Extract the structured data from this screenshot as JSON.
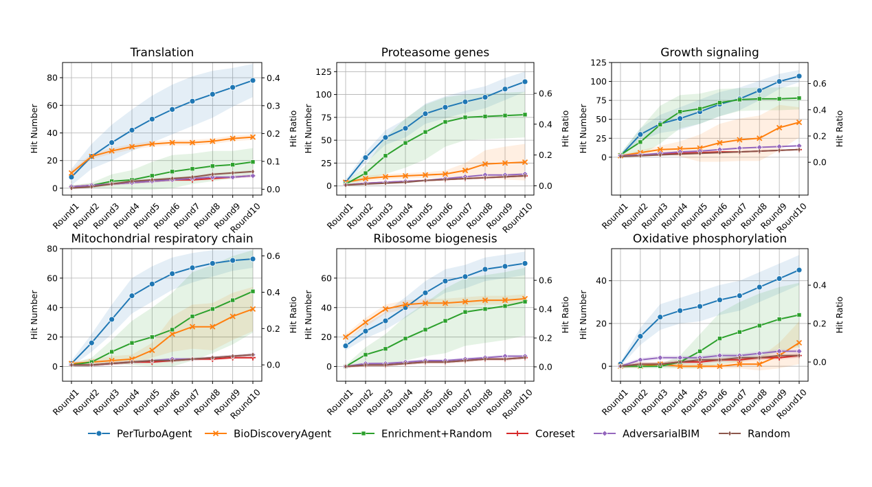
{
  "shared": {
    "categories": [
      "Round1",
      "Round2",
      "Round3",
      "Round4",
      "Round5",
      "Round6",
      "Round7",
      "Round8",
      "Round9",
      "Round10"
    ],
    "ylabel_left": "Hit Number",
    "ylabel_right": "Hit Ratio",
    "legend": [
      {
        "name": "PerTurboAgent",
        "color": "#1f77b4",
        "marker": "circle"
      },
      {
        "name": "BioDiscoveryAgent",
        "color": "#ff7f0e",
        "marker": "x"
      },
      {
        "name": "Enrichment+Random",
        "color": "#2ca02c",
        "marker": "square"
      },
      {
        "name": "Coreset",
        "color": "#d62728",
        "marker": "plus"
      },
      {
        "name": "AdversarialBIM",
        "color": "#9467bd",
        "marker": "diamond"
      },
      {
        "name": "Random",
        "color": "#8c564b",
        "marker": "thin-diamond"
      }
    ],
    "legend_position": "bottom-center",
    "grid": true
  },
  "chart_data": [
    {
      "type": "line",
      "title": "Translation",
      "ylim": [
        -5,
        91
      ],
      "yticks": [
        0,
        20,
        40,
        60,
        80
      ],
      "y2lim": [
        -0.021,
        0.455
      ],
      "y2ticks": [
        "0.0",
        "0.1",
        "0.2",
        "0.3",
        "0.4"
      ],
      "series": [
        {
          "name": "PerTurboAgent",
          "values": [
            8,
            23,
            33,
            42,
            50,
            57,
            63,
            68,
            73,
            78
          ],
          "band": [
            6,
            9,
            13,
            15,
            17,
            18,
            18,
            17,
            14,
            12
          ]
        },
        {
          "name": "BioDiscoveryAgent",
          "values": [
            11,
            23,
            27,
            30,
            32,
            33,
            33,
            34,
            36,
            37
          ],
          "band": [
            2,
            2,
            2,
            2,
            2,
            2,
            2,
            2,
            2,
            2
          ]
        },
        {
          "name": "Enrichment+Random",
          "values": [
            1,
            2,
            5,
            6,
            9,
            12,
            14,
            16,
            17,
            19
          ],
          "band": [
            1,
            2,
            5,
            7,
            10,
            12,
            11,
            11,
            10,
            10
          ]
        },
        {
          "name": "Coreset",
          "values": [
            1,
            2,
            3,
            4,
            5,
            6,
            6,
            7,
            8,
            9
          ],
          "band": [
            1,
            1,
            1,
            1,
            1,
            1,
            1,
            1,
            1,
            1
          ]
        },
        {
          "name": "AdversarialBIM",
          "values": [
            1,
            2,
            3,
            4,
            5,
            6,
            7,
            8,
            8,
            9
          ],
          "band": [
            1,
            1,
            1,
            1,
            1,
            1,
            1,
            1,
            1,
            1
          ]
        },
        {
          "name": "Random",
          "values": [
            0,
            1,
            3,
            5,
            6,
            7,
            8,
            10,
            11,
            12
          ],
          "band": [
            1,
            1,
            1,
            1,
            1,
            1,
            1,
            1,
            1,
            1
          ]
        }
      ]
    },
    {
      "type": "line",
      "title": "Proteasome genes",
      "ylim": [
        -10,
        135
      ],
      "yticks": [
        0,
        25,
        50,
        75,
        100,
        125
      ],
      "y2lim": [
        -0.06,
        0.8
      ],
      "y2ticks": [
        "0.0",
        "0.2",
        "0.4",
        "0.6"
      ],
      "series": [
        {
          "name": "PerTurboAgent",
          "values": [
            4,
            31,
            53,
            63,
            79,
            86,
            92,
            97,
            106,
            114
          ],
          "band": [
            3,
            6,
            8,
            10,
            11,
            12,
            12,
            12,
            12,
            11
          ]
        },
        {
          "name": "BioDiscoveryAgent",
          "values": [
            4,
            8,
            10,
            11,
            12,
            13,
            17,
            24,
            25,
            26
          ],
          "band": [
            1,
            3,
            3,
            3,
            3,
            4,
            8,
            15,
            18,
            20
          ]
        },
        {
          "name": "Enrichment+Random",
          "values": [
            2,
            14,
            33,
            47,
            59,
            70,
            75,
            76,
            77,
            78
          ],
          "band": [
            2,
            8,
            20,
            27,
            30,
            27,
            25,
            25,
            25,
            25
          ]
        },
        {
          "name": "Coreset",
          "values": [
            1,
            3,
            4,
            5,
            6,
            7,
            8,
            9,
            10,
            11
          ],
          "band": [
            1,
            1,
            1,
            1,
            1,
            1,
            1,
            1,
            1,
            1
          ]
        },
        {
          "name": "AdversarialBIM",
          "values": [
            1,
            3,
            4,
            5,
            6,
            8,
            10,
            12,
            12,
            13
          ],
          "band": [
            1,
            1,
            1,
            1,
            1,
            1,
            1,
            1,
            1,
            1
          ]
        },
        {
          "name": "Random",
          "values": [
            1,
            2,
            3,
            4,
            6,
            7,
            8,
            9,
            10,
            11
          ],
          "band": [
            1,
            1,
            1,
            1,
            1,
            1,
            1,
            1,
            1,
            1
          ]
        }
      ]
    },
    {
      "type": "line",
      "title": "Growth signaling",
      "ylim": [
        -50,
        125
      ],
      "yticks": [
        0,
        25,
        50,
        75,
        100,
        125
      ],
      "y2lim": [
        -0.25,
        0.76
      ],
      "y2ticks": [
        "0.0",
        "0.2",
        "0.4",
        "0.6"
      ],
      "series": [
        {
          "name": "PerTurboAgent",
          "values": [
            2,
            30,
            44,
            51,
            60,
            70,
            77,
            88,
            100,
            107
          ],
          "band": [
            2,
            8,
            12,
            15,
            16,
            16,
            15,
            13,
            10,
            8
          ]
        },
        {
          "name": "BioDiscoveryAgent",
          "values": [
            2,
            6,
            10,
            11,
            12,
            19,
            23,
            25,
            39,
            46
          ],
          "band": [
            1,
            3,
            5,
            10,
            18,
            25,
            28,
            30,
            30,
            20
          ]
        },
        {
          "name": "Enrichment+Random",
          "values": [
            3,
            20,
            43,
            60,
            64,
            72,
            76,
            77,
            77,
            78
          ],
          "band": [
            2,
            18,
            25,
            22,
            20,
            18,
            15,
            15,
            15,
            15
          ]
        },
        {
          "name": "Coreset",
          "values": [
            2,
            3,
            4,
            5,
            6,
            7,
            7,
            8,
            9,
            10
          ],
          "band": [
            1,
            1,
            1,
            1,
            1,
            1,
            1,
            1,
            1,
            1
          ]
        },
        {
          "name": "AdversarialBIM",
          "values": [
            2,
            3,
            5,
            7,
            8,
            10,
            12,
            13,
            14,
            15
          ],
          "band": [
            1,
            1,
            1,
            1,
            1,
            1,
            1,
            1,
            1,
            1
          ]
        },
        {
          "name": "Random",
          "values": [
            1,
            2,
            3,
            4,
            5,
            6,
            7,
            8,
            9,
            10
          ],
          "band": [
            1,
            1,
            1,
            1,
            1,
            1,
            1,
            1,
            1,
            1
          ]
        }
      ]
    },
    {
      "type": "line",
      "title": "Mitochondrial respiratory chain",
      "ylim": [
        -10,
        80
      ],
      "yticks": [
        0,
        20,
        40,
        60,
        80
      ],
      "y2lim": [
        -0.09,
        0.64
      ],
      "y2ticks": [
        "0.0",
        "0.2",
        "0.4",
        "0.6"
      ],
      "series": [
        {
          "name": "PerTurboAgent",
          "values": [
            2,
            16,
            32,
            48,
            56,
            63,
            67,
            70,
            72,
            73
          ],
          "band": [
            2,
            6,
            10,
            12,
            12,
            11,
            10,
            9,
            7,
            6
          ]
        },
        {
          "name": "BioDiscoveryAgent",
          "values": [
            2,
            3,
            4,
            5,
            11,
            22,
            27,
            27,
            34,
            39
          ],
          "band": [
            1,
            2,
            3,
            3,
            5,
            12,
            15,
            16,
            16,
            15
          ]
        },
        {
          "name": "Enrichment+Random",
          "values": [
            1,
            3,
            10,
            16,
            20,
            25,
            34,
            39,
            45,
            51
          ],
          "band": [
            1,
            3,
            8,
            15,
            20,
            25,
            30,
            30,
            30,
            28
          ]
        },
        {
          "name": "Coreset",
          "values": [
            1,
            1,
            2,
            3,
            3,
            4,
            5,
            5,
            6,
            6
          ],
          "band": [
            1,
            1,
            1,
            1,
            1,
            1,
            1,
            1,
            1,
            1
          ]
        },
        {
          "name": "AdversarialBIM",
          "values": [
            1,
            1,
            2,
            3,
            4,
            5,
            5,
            6,
            7,
            8
          ],
          "band": [
            1,
            1,
            1,
            1,
            1,
            1,
            1,
            1,
            1,
            1
          ]
        },
        {
          "name": "Random",
          "values": [
            1,
            1,
            2,
            3,
            4,
            4,
            5,
            6,
            7,
            8
          ],
          "band": [
            1,
            1,
            1,
            1,
            1,
            1,
            1,
            1,
            1,
            1
          ]
        }
      ]
    },
    {
      "type": "line",
      "title": "Ribosome biogenesis",
      "ylim": [
        -10,
        80
      ],
      "yticks": [
        0,
        20,
        40,
        60
      ],
      "y2lim": [
        -0.1,
        0.82
      ],
      "y2ticks": [
        "0.0",
        "0.2",
        "0.4",
        "0.6"
      ],
      "series": [
        {
          "name": "PerTurboAgent",
          "values": [
            14,
            24,
            31,
            40,
            50,
            58,
            61,
            66,
            68,
            70
          ],
          "band": [
            3,
            5,
            6,
            7,
            8,
            8,
            8,
            8,
            8,
            8
          ]
        },
        {
          "name": "BioDiscoveryAgent",
          "values": [
            20,
            30,
            39,
            42,
            43,
            43,
            44,
            45,
            45,
            46
          ],
          "band": [
            2,
            3,
            3,
            3,
            3,
            3,
            3,
            3,
            3,
            3
          ]
        },
        {
          "name": "Enrichment+Random",
          "values": [
            0,
            8,
            12,
            19,
            25,
            31,
            37,
            39,
            41,
            44
          ],
          "band": [
            1,
            5,
            10,
            15,
            18,
            22,
            23,
            23,
            23,
            23
          ]
        },
        {
          "name": "Coreset",
          "values": [
            0,
            1,
            1,
            2,
            3,
            3,
            4,
            5,
            5,
            6
          ],
          "band": [
            1,
            1,
            1,
            1,
            1,
            1,
            1,
            1,
            1,
            1
          ]
        },
        {
          "name": "AdversarialBIM",
          "values": [
            0,
            2,
            2,
            3,
            4,
            4,
            5,
            6,
            7,
            7
          ],
          "band": [
            1,
            1,
            1,
            1,
            1,
            1,
            1,
            1,
            1,
            1
          ]
        },
        {
          "name": "Random",
          "values": [
            0,
            1,
            1,
            2,
            3,
            3,
            4,
            5,
            5,
            6
          ],
          "band": [
            1,
            1,
            1,
            1,
            1,
            1,
            1,
            1,
            1,
            1
          ]
        }
      ]
    },
    {
      "type": "line",
      "title": "Oxidative phosphorylation",
      "ylim": [
        -7,
        55
      ],
      "yticks": [
        0,
        20,
        40
      ],
      "y2lim": [
        -0.1,
        0.59
      ],
      "y2ticks": [
        "0.0",
        "0.2",
        "0.4"
      ],
      "series": [
        {
          "name": "PerTurboAgent",
          "values": [
            1,
            14,
            23,
            26,
            28,
            31,
            33,
            37,
            41,
            45
          ],
          "band": [
            1,
            4,
            6,
            6,
            7,
            7,
            7,
            7,
            7,
            7
          ]
        },
        {
          "name": "BioDiscoveryAgent",
          "values": [
            0,
            0,
            1,
            0,
            0,
            0,
            1,
            1,
            5,
            11
          ],
          "band": [
            0,
            1,
            1,
            1,
            1,
            1,
            2,
            3,
            6,
            10
          ]
        },
        {
          "name": "Enrichment+Random",
          "values": [
            0,
            0,
            0,
            2,
            7,
            13,
            16,
            19,
            22,
            24
          ],
          "band": [
            1,
            1,
            1,
            3,
            8,
            12,
            14,
            15,
            15,
            15
          ]
        },
        {
          "name": "Coreset",
          "values": [
            0,
            1,
            1,
            2,
            2,
            3,
            3,
            4,
            4,
            5
          ],
          "band": [
            1,
            1,
            1,
            1,
            1,
            1,
            1,
            1,
            1,
            1
          ]
        },
        {
          "name": "AdversarialBIM",
          "values": [
            0,
            3,
            4,
            4,
            4,
            5,
            5,
            6,
            7,
            7
          ],
          "band": [
            1,
            1,
            1,
            1,
            1,
            1,
            1,
            1,
            1,
            1
          ]
        },
        {
          "name": "Random",
          "values": [
            0,
            1,
            1,
            2,
            3,
            3,
            4,
            4,
            5,
            5
          ],
          "band": [
            1,
            1,
            1,
            1,
            1,
            1,
            1,
            1,
            1,
            1
          ]
        }
      ]
    }
  ]
}
